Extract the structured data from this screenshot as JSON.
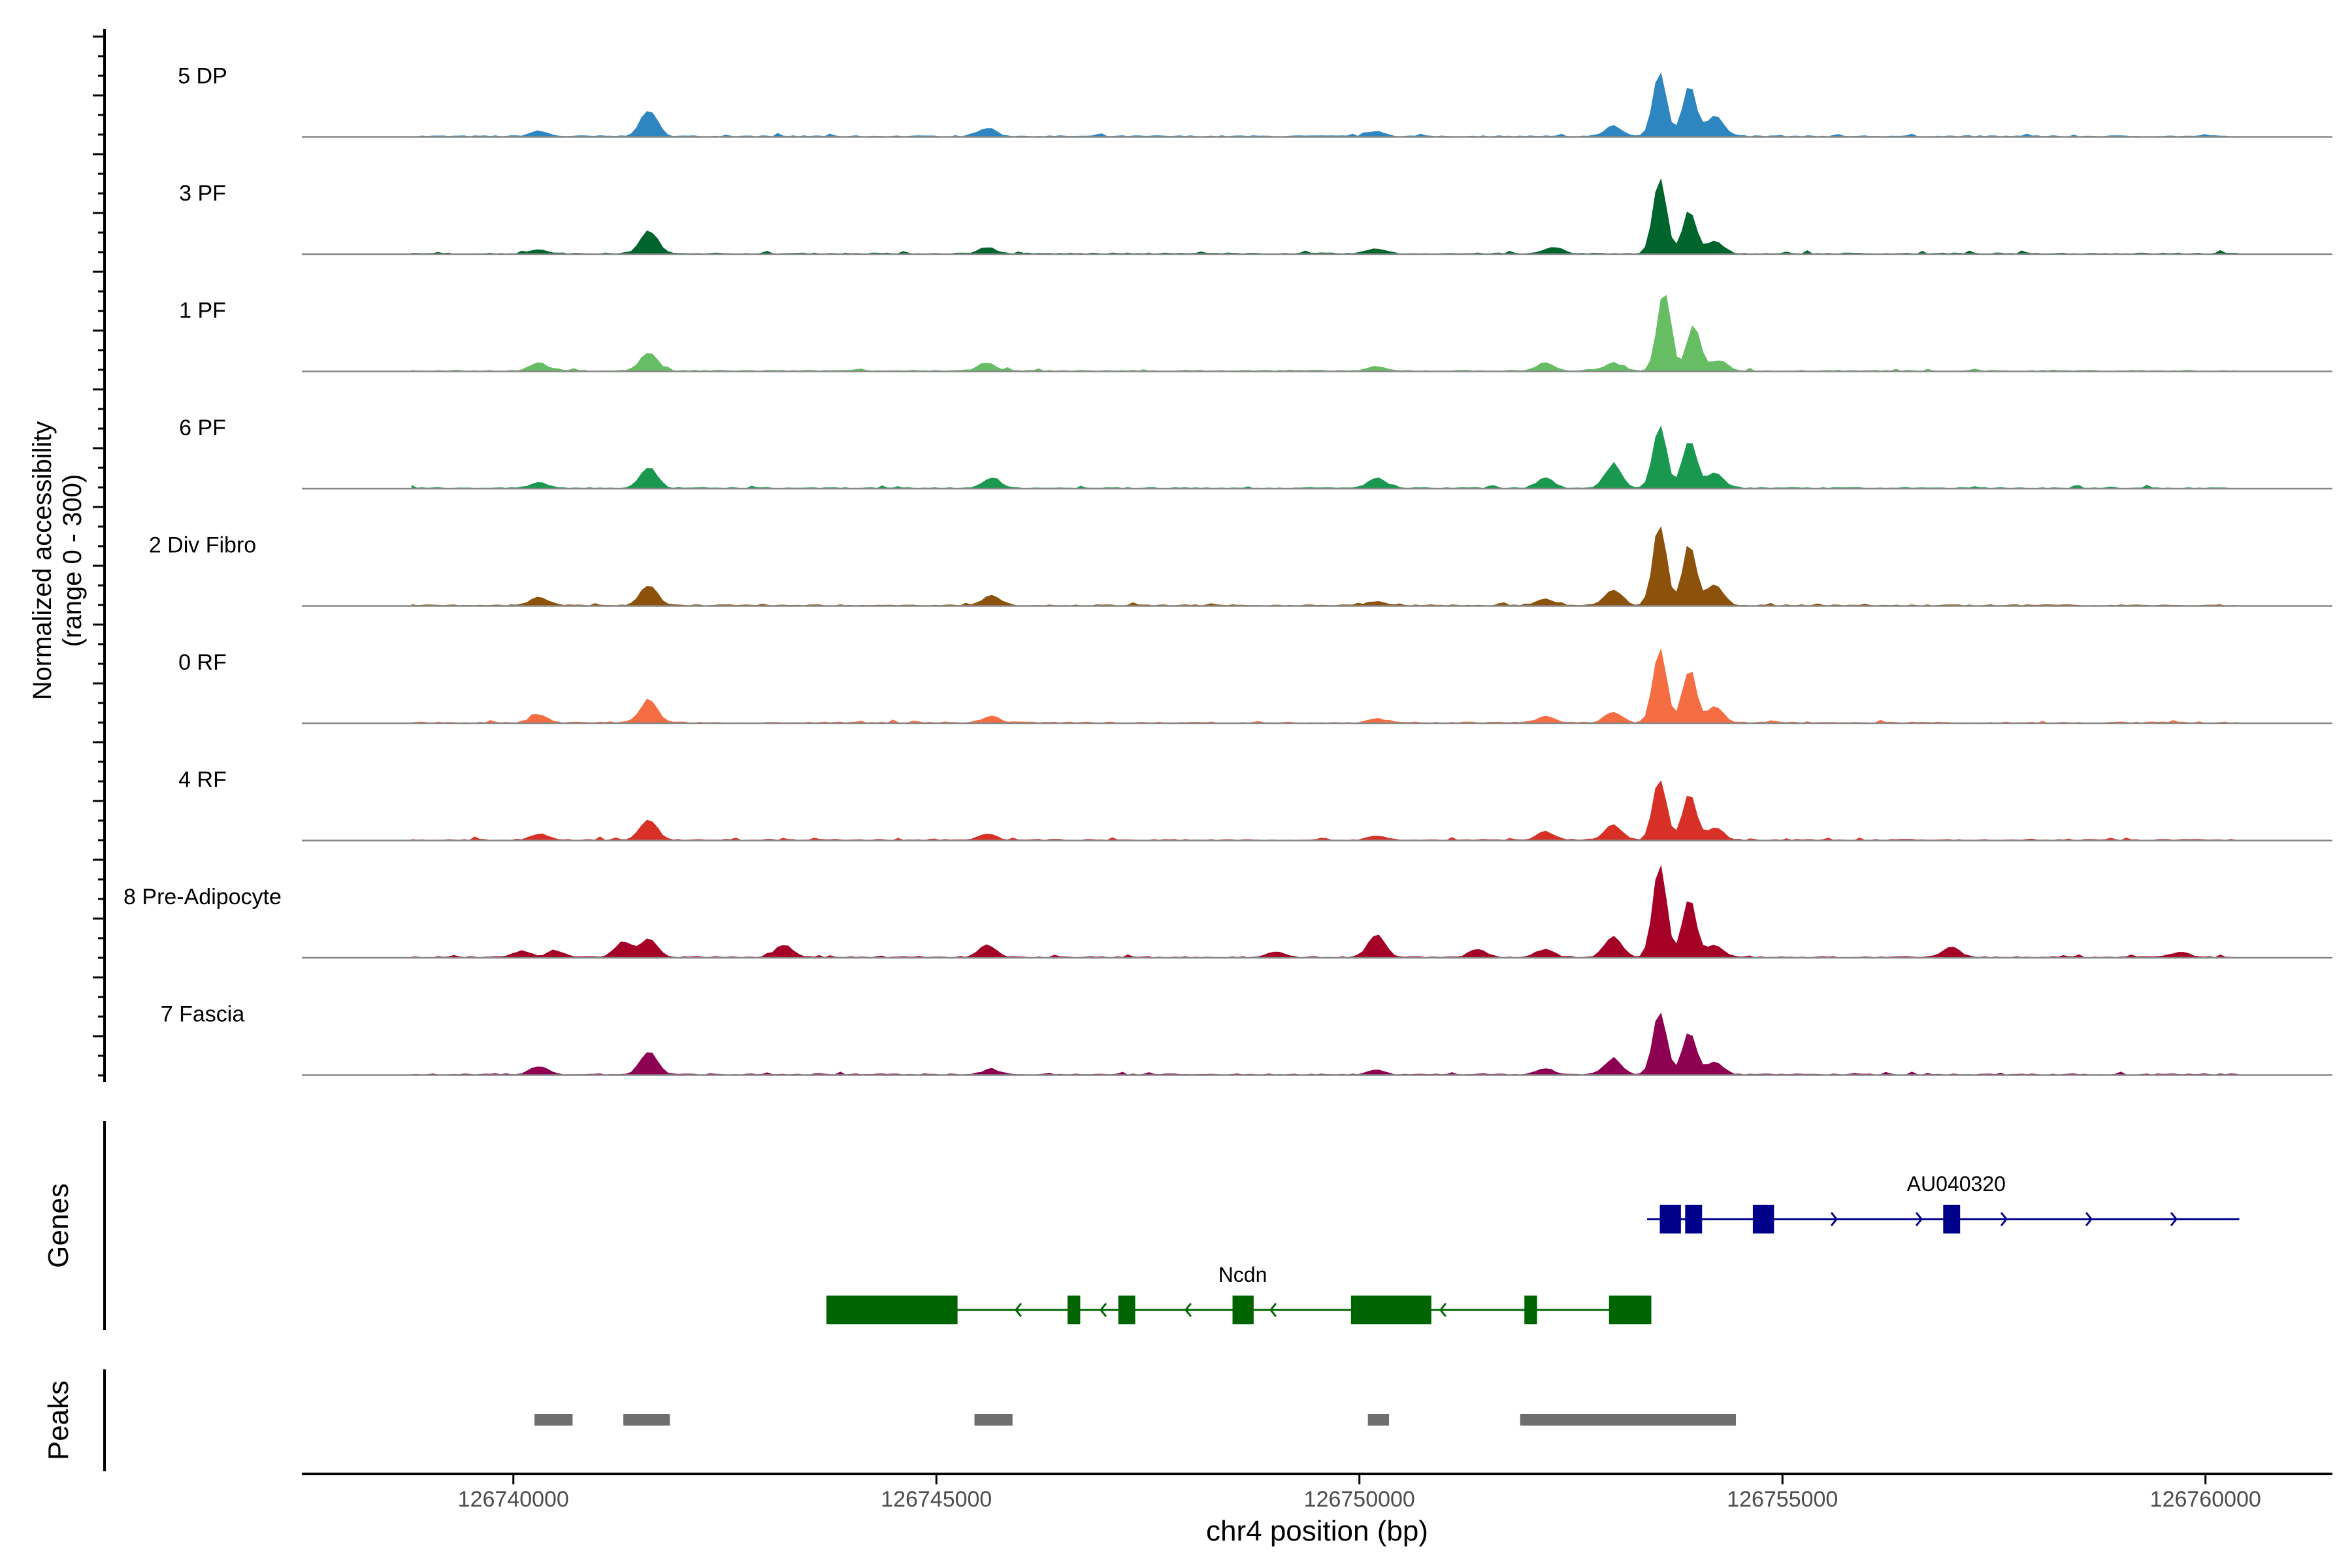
{
  "chart_data": {
    "type": "area",
    "subtype": "coverage-track",
    "y_axis_label_line1": "Normalized accessibility",
    "y_axis_label_line2": "(range 0 - 300)",
    "y_range": [
      0,
      300
    ],
    "x_axis_label": "chr4 position (bp)",
    "x_range": [
      126737500,
      126761500
    ],
    "x_ticks": [
      126740000,
      126745000,
      126750000,
      126755000,
      126760000
    ],
    "x_tick_labels": [
      "126740000",
      "126745000",
      "126750000",
      "126755000",
      "126760000"
    ],
    "coverage_extent": [
      126738800,
      126760400
    ],
    "tracks": [
      {
        "name": "5 DP",
        "color": "#2E86C1",
        "peaks": [
          [
            126740300,
            0.05
          ],
          [
            126741600,
            0.25
          ],
          [
            126745600,
            0.08
          ],
          [
            126750200,
            0.05
          ],
          [
            126753000,
            0.1
          ],
          [
            126753550,
            0.62
          ],
          [
            126753900,
            0.5
          ],
          [
            126754200,
            0.2
          ]
        ]
      },
      {
        "name": "3 PF",
        "color": "#00642D",
        "peaks": [
          [
            126740300,
            0.04
          ],
          [
            126741600,
            0.22
          ],
          [
            126745600,
            0.06
          ],
          [
            126750200,
            0.05
          ],
          [
            126752300,
            0.06
          ],
          [
            126753550,
            0.72
          ],
          [
            126753900,
            0.42
          ],
          [
            126754200,
            0.12
          ]
        ]
      },
      {
        "name": "1 PF",
        "color": "#66BD63",
        "peaks": [
          [
            126740300,
            0.08
          ],
          [
            126741600,
            0.18
          ],
          [
            126745600,
            0.08
          ],
          [
            126750200,
            0.04
          ],
          [
            126752200,
            0.08
          ],
          [
            126753000,
            0.08
          ],
          [
            126753600,
            0.8
          ],
          [
            126753950,
            0.45
          ],
          [
            126754250,
            0.1
          ]
        ]
      },
      {
        "name": "6 PF",
        "color": "#1A9850",
        "peaks": [
          [
            126740300,
            0.06
          ],
          [
            126741600,
            0.2
          ],
          [
            126745650,
            0.1
          ],
          [
            126750200,
            0.1
          ],
          [
            126752200,
            0.1
          ],
          [
            126753000,
            0.22
          ],
          [
            126753550,
            0.62
          ],
          [
            126753900,
            0.48
          ],
          [
            126754200,
            0.15
          ]
        ]
      },
      {
        "name": "2 Div Fibro",
        "color": "#8C510A",
        "peaks": [
          [
            126740300,
            0.08
          ],
          [
            126741600,
            0.2
          ],
          [
            126745650,
            0.1
          ],
          [
            126750200,
            0.04
          ],
          [
            126752200,
            0.06
          ],
          [
            126753000,
            0.15
          ],
          [
            126753550,
            0.8
          ],
          [
            126753900,
            0.6
          ],
          [
            126754200,
            0.2
          ]
        ]
      },
      {
        "name": "0 RF",
        "color": "#F46D43",
        "peaks": [
          [
            126740300,
            0.08
          ],
          [
            126741600,
            0.22
          ],
          [
            126745650,
            0.06
          ],
          [
            126750200,
            0.04
          ],
          [
            126752200,
            0.06
          ],
          [
            126753000,
            0.1
          ],
          [
            126753550,
            0.72
          ],
          [
            126753900,
            0.52
          ],
          [
            126754200,
            0.15
          ]
        ]
      },
      {
        "name": "4 RF",
        "color": "#D73027",
        "peaks": [
          [
            126740300,
            0.06
          ],
          [
            126741600,
            0.2
          ],
          [
            126745600,
            0.06
          ],
          [
            126750200,
            0.04
          ],
          [
            126752200,
            0.08
          ],
          [
            126753000,
            0.15
          ],
          [
            126753550,
            0.6
          ],
          [
            126753900,
            0.45
          ],
          [
            126754200,
            0.12
          ]
        ]
      },
      {
        "name": "8 Pre-Adipocyte",
        "color": "#A50026",
        "peaks": [
          [
            126740100,
            0.06
          ],
          [
            126740500,
            0.06
          ],
          [
            126741300,
            0.15
          ],
          [
            126741600,
            0.18
          ],
          [
            126743200,
            0.12
          ],
          [
            126745600,
            0.12
          ],
          [
            126749000,
            0.05
          ],
          [
            126750200,
            0.22
          ],
          [
            126751400,
            0.08
          ],
          [
            126752200,
            0.08
          ],
          [
            126753000,
            0.2
          ],
          [
            126753550,
            0.9
          ],
          [
            126753900,
            0.58
          ],
          [
            126754200,
            0.12
          ],
          [
            126757000,
            0.1
          ],
          [
            126759700,
            0.05
          ]
        ]
      },
      {
        "name": "7 Fascia",
        "color": "#8E0152",
        "peaks": [
          [
            126740300,
            0.08
          ],
          [
            126741600,
            0.22
          ],
          [
            126745650,
            0.05
          ],
          [
            126750200,
            0.04
          ],
          [
            126752200,
            0.06
          ],
          [
            126753000,
            0.15
          ],
          [
            126753550,
            0.62
          ],
          [
            126753900,
            0.42
          ],
          [
            126754200,
            0.12
          ]
        ]
      }
    ],
    "genes_label": "Genes",
    "genes": [
      {
        "name": "AU040320",
        "strand": "+",
        "color": "#00008B",
        "start": 126753400,
        "end": 126760400,
        "exons": [
          [
            126753550,
            126753800
          ],
          [
            126753850,
            126754050
          ],
          [
            126754650,
            126754900
          ],
          [
            126756900,
            126757100
          ]
        ]
      },
      {
        "name": "Ncdn",
        "strand": "-",
        "color": "#006400",
        "start": 126743700,
        "end": 126753450,
        "exons": [
          [
            126743700,
            126745250
          ],
          [
            126746550,
            126746700
          ],
          [
            126747150,
            126747350
          ],
          [
            126748500,
            126748750
          ],
          [
            126749900,
            126750850
          ],
          [
            126751950,
            126752100
          ],
          [
            126752950,
            126753450
          ]
        ]
      }
    ],
    "peaks_label": "Peaks",
    "peak_regions": [
      [
        126740250,
        126740700
      ],
      [
        126741300,
        126741850
      ],
      [
        126745450,
        126745900
      ],
      [
        126750100,
        126750350
      ],
      [
        126751900,
        126754450
      ]
    ],
    "peak_color": "#6E6E6E"
  }
}
